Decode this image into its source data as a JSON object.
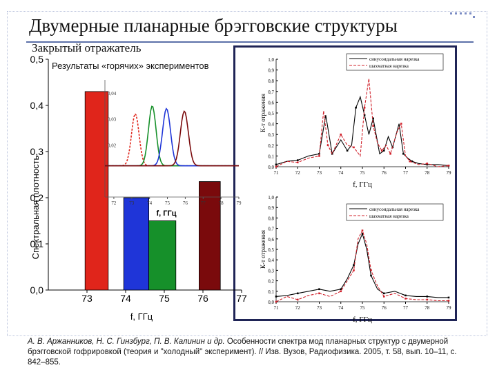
{
  "slide": {
    "title": "Двумерные планарные брэгговские структуры",
    "subtitle": "Закрытый отражатель",
    "citation_authors": "А. В. Аржанников, Н. С. Гинзбург, П. В. Калинин и др.",
    "citation_rest": " Особенности спектра мод планарных структур с двумерной брэгговской гофрировкой (теория и \"холодный\" эксперимент). // Изв. Вузов, Радиофизика. 2005, т. 58, вып. 10–11, с. 842–855."
  },
  "chart_data": [
    {
      "id": "hot-bars",
      "type": "bar",
      "title": "Результаты «горячих» экспериментов",
      "xlabel": "f, ГГц",
      "ylabel": "Спектральная плотность",
      "xlim": [
        72,
        77
      ],
      "ylim": [
        0,
        0.5
      ],
      "xticks": [
        "73",
        "74",
        "75",
        "76",
        "77"
      ],
      "yticks": [
        "0,0",
        "0,1",
        "0,2",
        "0,3",
        "0,4",
        "0,5"
      ],
      "bars": [
        {
          "x_start": 72.95,
          "x_end": 73.55,
          "value": 0.43,
          "color": "#e0251b"
        },
        {
          "x_start": 73.95,
          "x_end": 74.6,
          "value": 0.2,
          "color": "#1f35d8"
        },
        {
          "x_start": 74.6,
          "x_end": 75.3,
          "value": 0.15,
          "color": "#16902a"
        },
        {
          "x_start": 75.9,
          "x_end": 76.45,
          "value": 0.235,
          "color": "#7a0a0c"
        }
      ]
    },
    {
      "id": "hot-inset",
      "type": "line",
      "xlabel": "f, ГГц",
      "xlim": [
        71.5,
        79
      ],
      "ylim": [
        0,
        0.045
      ],
      "xticks": [
        "72",
        "73",
        "74",
        "75",
        "76",
        "77",
        "78",
        "79"
      ],
      "yticks": [
        "0,02",
        "0,03",
        "0,04"
      ],
      "series": [
        {
          "color": "#e0251b",
          "dashed": true,
          "center": 73.2,
          "height": 0.032,
          "width": 0.38
        },
        {
          "color": "#16902a",
          "dashed": false,
          "center": 74.15,
          "height": 0.035,
          "width": 0.38
        },
        {
          "color": "#1f35d8",
          "dashed": false,
          "center": 74.95,
          "height": 0.034,
          "width": 0.4
        },
        {
          "color": "#7a0a0c",
          "dashed": false,
          "center": 75.95,
          "height": 0.033,
          "width": 0.4
        }
      ]
    },
    {
      "id": "cold-top",
      "type": "line",
      "xlabel": "f, ГГц",
      "ylabel": "К-т отражения",
      "xlim": [
        71,
        79
      ],
      "ylim": [
        0,
        1.0
      ],
      "xticks": [
        "71",
        "72",
        "73",
        "74",
        "75",
        "76",
        "77",
        "78",
        "79"
      ],
      "yticks": [
        "0,0",
        "0,1",
        "0,2",
        "0,3",
        "0,4",
        "0,5",
        "0,6",
        "0,7",
        "0,8",
        "0,9",
        "1,0"
      ],
      "series": [
        {
          "name": "синусоидальная нарезка",
          "color": "#000000",
          "dashed": false,
          "x": [
            71,
            71.5,
            72,
            72.5,
            73,
            73.3,
            73.6,
            74,
            74.3,
            74.5,
            74.7,
            74.9,
            75.1,
            75.3,
            75.5,
            75.8,
            76.0,
            76.2,
            76.4,
            76.7,
            76.9,
            77.1,
            77.3,
            77.6,
            78,
            78.5,
            79
          ],
          "y": [
            0.02,
            0.05,
            0.06,
            0.1,
            0.12,
            0.48,
            0.12,
            0.25,
            0.15,
            0.2,
            0.55,
            0.65,
            0.48,
            0.3,
            0.45,
            0.12,
            0.15,
            0.28,
            0.18,
            0.4,
            0.12,
            0.08,
            0.05,
            0.03,
            0.02,
            0.02,
            0.01
          ]
        },
        {
          "name": "шахматная нарезка",
          "color": "#d0202a",
          "dashed": true,
          "x": [
            71,
            71.5,
            72,
            72.5,
            73,
            73.2,
            73.4,
            73.6,
            74,
            74.3,
            74.6,
            74.9,
            75.1,
            75.3,
            75.5,
            75.7,
            75.9,
            76.1,
            76.3,
            76.6,
            76.8,
            77.0,
            77.2,
            77.6,
            78,
            78.5,
            79
          ],
          "y": [
            0.0,
            0.05,
            0.04,
            0.08,
            0.1,
            0.52,
            0.2,
            0.12,
            0.3,
            0.2,
            0.18,
            0.1,
            0.55,
            0.82,
            0.38,
            0.22,
            0.15,
            0.2,
            0.12,
            0.32,
            0.4,
            0.1,
            0.05,
            0.02,
            0.03,
            0.0,
            0.01
          ]
        }
      ]
    },
    {
      "id": "cold-bottom",
      "type": "line",
      "xlabel": "f, ГГц",
      "ylabel": "К-т отражения",
      "xlim": [
        71,
        79
      ],
      "ylim": [
        0,
        1.0
      ],
      "xticks": [
        "71",
        "72",
        "73",
        "74",
        "75",
        "76",
        "77",
        "78",
        "79"
      ],
      "yticks": [
        "0,0",
        "0,1",
        "0,2",
        "0,3",
        "0,4",
        "0,5",
        "0,6",
        "0,7",
        "0,8",
        "0,9",
        "1,0"
      ],
      "series": [
        {
          "name": "синусоидальная нарезка",
          "color": "#000000",
          "dashed": false,
          "x": [
            71,
            71.5,
            72,
            72.5,
            73,
            73.5,
            74,
            74.3,
            74.6,
            74.8,
            75.0,
            75.2,
            75.4,
            75.7,
            76,
            76.5,
            77,
            77.5,
            78,
            78.5,
            79
          ],
          "y": [
            0.05,
            0.06,
            0.08,
            0.1,
            0.12,
            0.1,
            0.12,
            0.22,
            0.35,
            0.55,
            0.65,
            0.5,
            0.25,
            0.12,
            0.08,
            0.1,
            0.06,
            0.05,
            0.05,
            0.04,
            0.04
          ]
        },
        {
          "name": "шахматная нарезка",
          "color": "#d0202a",
          "dashed": true,
          "x": [
            71,
            71.5,
            72,
            72.5,
            73,
            73.5,
            74,
            74.3,
            74.6,
            74.8,
            75.0,
            75.2,
            75.4,
            75.7,
            76,
            76.5,
            77,
            77.5,
            78,
            78.5,
            79
          ],
          "y": [
            0.0,
            0.05,
            0.02,
            0.06,
            0.08,
            0.05,
            0.1,
            0.2,
            0.3,
            0.6,
            0.68,
            0.55,
            0.3,
            0.15,
            0.05,
            0.08,
            0.03,
            0.02,
            0.02,
            0.01,
            0.01
          ]
        }
      ]
    }
  ]
}
